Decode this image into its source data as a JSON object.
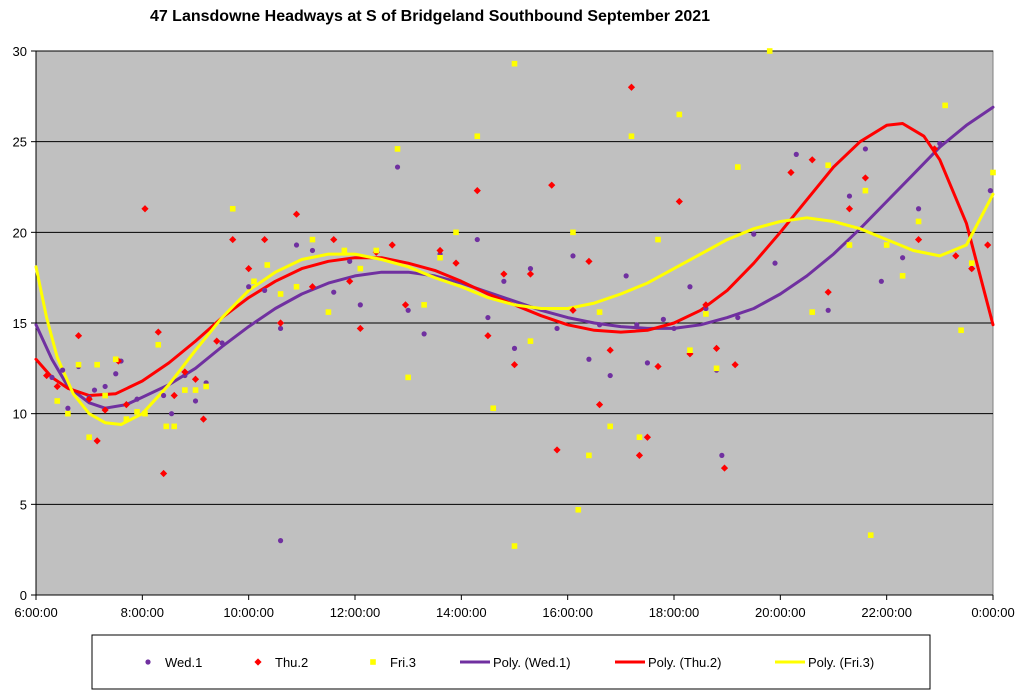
{
  "chart_data": {
    "type": "scatter",
    "title": "47 Lansdowne Headways at S of Bridgeland Southbound September 2021",
    "xlabel": "",
    "ylabel": "",
    "x_unit": "hours",
    "xlim": [
      6,
      24
    ],
    "ylim": [
      0,
      30
    ],
    "x_ticks": [
      6,
      8,
      10,
      12,
      14,
      16,
      18,
      20,
      22,
      24
    ],
    "x_tick_labels": [
      "6:00:00",
      "8:00:00",
      "10:00:00",
      "12:00:00",
      "14:00:00",
      "16:00:00",
      "18:00:00",
      "20:00:00",
      "22:00:00",
      "0:00:00"
    ],
    "y_ticks": [
      0,
      5,
      10,
      15,
      20,
      25,
      30
    ],
    "y_tick_labels": [
      "0",
      "5",
      "10",
      "15",
      "20",
      "25",
      "30"
    ],
    "grid": "horizontal",
    "plot_background": "#c0c0c0",
    "legend_position": "bottom",
    "series": [
      {
        "name": "Wed.1",
        "marker": "circle",
        "color": "#7030a0",
        "points": [
          [
            6.3,
            12.0
          ],
          [
            6.5,
            12.4
          ],
          [
            6.6,
            10.3
          ],
          [
            6.8,
            12.6
          ],
          [
            7.0,
            10.9
          ],
          [
            7.1,
            11.3
          ],
          [
            7.3,
            11.5
          ],
          [
            7.5,
            12.2
          ],
          [
            7.6,
            12.9
          ],
          [
            7.9,
            10.8
          ],
          [
            8.4,
            11.0
          ],
          [
            8.55,
            10.0
          ],
          [
            8.8,
            12.1
          ],
          [
            9.0,
            10.7
          ],
          [
            9.2,
            11.7
          ],
          [
            9.5,
            13.9
          ],
          [
            10.0,
            17.0
          ],
          [
            10.3,
            16.8
          ],
          [
            10.6,
            14.7
          ],
          [
            10.6,
            3.0
          ],
          [
            10.9,
            19.3
          ],
          [
            11.2,
            19.0
          ],
          [
            11.6,
            16.7
          ],
          [
            11.9,
            18.4
          ],
          [
            12.1,
            16.0
          ],
          [
            12.4,
            19.0
          ],
          [
            12.8,
            23.6
          ],
          [
            13.0,
            15.7
          ],
          [
            13.3,
            14.4
          ],
          [
            13.6,
            18.8
          ],
          [
            14.3,
            19.6
          ],
          [
            14.5,
            15.3
          ],
          [
            14.8,
            17.3
          ],
          [
            15.0,
            13.6
          ],
          [
            15.3,
            18.0
          ],
          [
            15.8,
            14.7
          ],
          [
            16.1,
            18.7
          ],
          [
            16.4,
            13.0
          ],
          [
            16.6,
            14.9
          ],
          [
            16.8,
            12.1
          ],
          [
            17.1,
            17.6
          ],
          [
            17.3,
            14.9
          ],
          [
            17.5,
            12.8
          ],
          [
            17.8,
            15.2
          ],
          [
            18.0,
            14.7
          ],
          [
            18.3,
            17.0
          ],
          [
            18.6,
            15.8
          ],
          [
            18.8,
            12.4
          ],
          [
            18.9,
            7.7
          ],
          [
            19.2,
            15.3
          ],
          [
            19.5,
            19.9
          ],
          [
            19.9,
            18.3
          ],
          [
            20.3,
            24.3
          ],
          [
            20.9,
            15.7
          ],
          [
            21.3,
            22.0
          ],
          [
            21.6,
            24.6
          ],
          [
            21.9,
            17.3
          ],
          [
            22.3,
            18.6
          ],
          [
            22.6,
            21.3
          ],
          [
            23.0,
            24.9
          ],
          [
            23.6,
            18.0
          ],
          [
            23.95,
            22.3
          ]
        ]
      },
      {
        "name": "Thu.2",
        "marker": "diamond",
        "color": "#ff0000",
        "points": [
          [
            6.2,
            12.1
          ],
          [
            6.4,
            11.5
          ],
          [
            6.8,
            14.3
          ],
          [
            7.0,
            10.8
          ],
          [
            7.15,
            8.5
          ],
          [
            7.3,
            10.2
          ],
          [
            7.55,
            12.9
          ],
          [
            7.7,
            10.5
          ],
          [
            8.05,
            21.3
          ],
          [
            8.3,
            14.5
          ],
          [
            8.4,
            6.7
          ],
          [
            8.6,
            11.0
          ],
          [
            8.8,
            12.3
          ],
          [
            9.0,
            11.9
          ],
          [
            9.15,
            9.7
          ],
          [
            9.4,
            14.0
          ],
          [
            9.7,
            19.6
          ],
          [
            10.0,
            18.0
          ],
          [
            10.3,
            19.6
          ],
          [
            10.6,
            15.0
          ],
          [
            10.9,
            21.0
          ],
          [
            11.2,
            17.0
          ],
          [
            11.6,
            19.6
          ],
          [
            11.9,
            17.3
          ],
          [
            12.1,
            14.7
          ],
          [
            12.4,
            18.9
          ],
          [
            12.7,
            19.3
          ],
          [
            12.95,
            16.0
          ],
          [
            13.6,
            19.0
          ],
          [
            13.9,
            18.3
          ],
          [
            14.3,
            22.3
          ],
          [
            14.5,
            14.3
          ],
          [
            14.8,
            17.7
          ],
          [
            15.0,
            12.7
          ],
          [
            15.3,
            17.7
          ],
          [
            15.7,
            22.6
          ],
          [
            15.8,
            8.0
          ],
          [
            16.1,
            15.7
          ],
          [
            16.4,
            18.4
          ],
          [
            16.6,
            10.5
          ],
          [
            16.8,
            13.5
          ],
          [
            17.2,
            28.0
          ],
          [
            17.35,
            7.7
          ],
          [
            17.5,
            8.7
          ],
          [
            17.7,
            12.6
          ],
          [
            18.1,
            21.7
          ],
          [
            18.3,
            13.3
          ],
          [
            18.6,
            16.0
          ],
          [
            18.8,
            13.6
          ],
          [
            18.95,
            7.0
          ],
          [
            19.15,
            12.7
          ],
          [
            20.2,
            23.3
          ],
          [
            20.6,
            24.0
          ],
          [
            20.9,
            16.7
          ],
          [
            21.3,
            21.3
          ],
          [
            21.6,
            23.0
          ],
          [
            22.6,
            19.6
          ],
          [
            22.9,
            24.6
          ],
          [
            23.3,
            18.7
          ],
          [
            23.6,
            18.0
          ],
          [
            23.9,
            19.3
          ]
        ]
      },
      {
        "name": "Fri.3",
        "marker": "square",
        "color": "#ffff00",
        "points": [
          [
            6.4,
            10.7
          ],
          [
            6.6,
            10.0
          ],
          [
            6.8,
            12.7
          ],
          [
            7.0,
            8.7
          ],
          [
            7.15,
            12.7
          ],
          [
            7.3,
            11.0
          ],
          [
            7.5,
            13.0
          ],
          [
            7.7,
            9.7
          ],
          [
            7.9,
            10.1
          ],
          [
            8.05,
            10.0
          ],
          [
            8.3,
            13.8
          ],
          [
            8.45,
            9.3
          ],
          [
            8.6,
            9.3
          ],
          [
            8.8,
            11.3
          ],
          [
            9.0,
            11.3
          ],
          [
            9.2,
            11.5
          ],
          [
            9.7,
            21.3
          ],
          [
            10.1,
            17.3
          ],
          [
            10.35,
            18.2
          ],
          [
            10.6,
            16.6
          ],
          [
            10.9,
            17.0
          ],
          [
            11.2,
            19.6
          ],
          [
            11.5,
            15.6
          ],
          [
            11.8,
            19.0
          ],
          [
            12.1,
            18.0
          ],
          [
            12.4,
            19.0
          ],
          [
            12.8,
            24.6
          ],
          [
            13.0,
            12.0
          ],
          [
            13.3,
            16.0
          ],
          [
            13.6,
            18.6
          ],
          [
            13.9,
            20.0
          ],
          [
            14.3,
            25.3
          ],
          [
            14.6,
            10.3
          ],
          [
            15.0,
            29.3
          ],
          [
            15.0,
            2.7
          ],
          [
            15.3,
            14.0
          ],
          [
            16.1,
            20.0
          ],
          [
            16.2,
            4.7
          ],
          [
            16.4,
            7.7
          ],
          [
            16.6,
            15.6
          ],
          [
            16.8,
            9.3
          ],
          [
            17.2,
            25.3
          ],
          [
            17.35,
            8.7
          ],
          [
            17.7,
            19.6
          ],
          [
            18.1,
            26.5
          ],
          [
            18.3,
            13.5
          ],
          [
            18.6,
            15.5
          ],
          [
            18.8,
            12.5
          ],
          [
            19.2,
            23.6
          ],
          [
            19.8,
            30.0
          ],
          [
            20.6,
            15.6
          ],
          [
            20.9,
            23.7
          ],
          [
            21.3,
            19.3
          ],
          [
            21.6,
            22.3
          ],
          [
            21.7,
            3.3
          ],
          [
            22.0,
            19.3
          ],
          [
            22.3,
            17.6
          ],
          [
            22.6,
            20.6
          ],
          [
            23.1,
            27.0
          ],
          [
            23.4,
            14.6
          ],
          [
            23.6,
            18.3
          ],
          [
            24.0,
            23.3
          ]
        ]
      }
    ],
    "trendlines": [
      {
        "name": "Poly. (Wed.1)",
        "color": "#7030a0",
        "points": [
          [
            6.0,
            14.9
          ],
          [
            6.3,
            13.0
          ],
          [
            6.6,
            11.5
          ],
          [
            7.0,
            10.6
          ],
          [
            7.3,
            10.3
          ],
          [
            7.7,
            10.5
          ],
          [
            8.0,
            10.9
          ],
          [
            8.5,
            11.6
          ],
          [
            9.0,
            12.5
          ],
          [
            9.5,
            13.7
          ],
          [
            10.0,
            14.8
          ],
          [
            10.5,
            15.8
          ],
          [
            11.0,
            16.6
          ],
          [
            11.5,
            17.2
          ],
          [
            12.0,
            17.6
          ],
          [
            12.5,
            17.8
          ],
          [
            13.0,
            17.8
          ],
          [
            13.5,
            17.6
          ],
          [
            14.0,
            17.2
          ],
          [
            14.5,
            16.7
          ],
          [
            15.0,
            16.2
          ],
          [
            15.5,
            15.7
          ],
          [
            16.0,
            15.3
          ],
          [
            16.5,
            15.0
          ],
          [
            17.0,
            14.8
          ],
          [
            17.5,
            14.7
          ],
          [
            18.0,
            14.7
          ],
          [
            18.5,
            14.9
          ],
          [
            19.0,
            15.3
          ],
          [
            19.5,
            15.8
          ],
          [
            20.0,
            16.6
          ],
          [
            20.5,
            17.6
          ],
          [
            21.0,
            18.8
          ],
          [
            21.5,
            20.2
          ],
          [
            22.0,
            21.7
          ],
          [
            22.5,
            23.2
          ],
          [
            23.0,
            24.7
          ],
          [
            23.5,
            25.9
          ],
          [
            24.0,
            26.9
          ]
        ]
      },
      {
        "name": "Poly. (Thu.2)",
        "color": "#ff0000",
        "points": [
          [
            6.0,
            13.0
          ],
          [
            6.3,
            12.0
          ],
          [
            6.6,
            11.4
          ],
          [
            7.0,
            11.0
          ],
          [
            7.5,
            11.1
          ],
          [
            8.0,
            11.8
          ],
          [
            8.5,
            12.8
          ],
          [
            9.0,
            14.0
          ],
          [
            9.5,
            15.3
          ],
          [
            10.0,
            16.4
          ],
          [
            10.5,
            17.3
          ],
          [
            11.0,
            18.0
          ],
          [
            11.5,
            18.4
          ],
          [
            12.0,
            18.6
          ],
          [
            12.5,
            18.6
          ],
          [
            13.0,
            18.3
          ],
          [
            13.5,
            17.9
          ],
          [
            14.0,
            17.3
          ],
          [
            14.5,
            16.6
          ],
          [
            15.0,
            16.0
          ],
          [
            15.5,
            15.4
          ],
          [
            16.0,
            14.9
          ],
          [
            16.5,
            14.6
          ],
          [
            17.0,
            14.5
          ],
          [
            17.5,
            14.6
          ],
          [
            18.0,
            15.0
          ],
          [
            18.5,
            15.7
          ],
          [
            19.0,
            16.8
          ],
          [
            19.5,
            18.3
          ],
          [
            20.0,
            20.0
          ],
          [
            20.5,
            21.8
          ],
          [
            21.0,
            23.6
          ],
          [
            21.5,
            25.0
          ],
          [
            22.0,
            25.9
          ],
          [
            22.3,
            26.0
          ],
          [
            22.7,
            25.3
          ],
          [
            23.0,
            24.0
          ],
          [
            23.5,
            20.5
          ],
          [
            24.0,
            14.9
          ]
        ]
      },
      {
        "name": "Poly. (Fri.3)",
        "color": "#ffff00",
        "points": [
          [
            6.0,
            18.1
          ],
          [
            6.2,
            15.3
          ],
          [
            6.4,
            13.1
          ],
          [
            6.7,
            11.1
          ],
          [
            7.0,
            10.0
          ],
          [
            7.3,
            9.5
          ],
          [
            7.6,
            9.4
          ],
          [
            8.0,
            10.0
          ],
          [
            8.5,
            11.6
          ],
          [
            9.0,
            13.5
          ],
          [
            9.5,
            15.3
          ],
          [
            10.0,
            16.8
          ],
          [
            10.5,
            17.8
          ],
          [
            11.0,
            18.5
          ],
          [
            11.5,
            18.8
          ],
          [
            12.0,
            18.8
          ],
          [
            12.5,
            18.5
          ],
          [
            13.0,
            18.1
          ],
          [
            13.5,
            17.5
          ],
          [
            14.0,
            17.0
          ],
          [
            14.5,
            16.4
          ],
          [
            15.0,
            16.0
          ],
          [
            15.5,
            15.8
          ],
          [
            16.0,
            15.8
          ],
          [
            16.5,
            16.1
          ],
          [
            17.0,
            16.6
          ],
          [
            17.5,
            17.2
          ],
          [
            18.0,
            18.0
          ],
          [
            18.5,
            18.8
          ],
          [
            19.0,
            19.6
          ],
          [
            19.5,
            20.2
          ],
          [
            20.0,
            20.6
          ],
          [
            20.5,
            20.8
          ],
          [
            21.0,
            20.6
          ],
          [
            21.5,
            20.2
          ],
          [
            22.0,
            19.6
          ],
          [
            22.5,
            19.0
          ],
          [
            23.0,
            18.7
          ],
          [
            23.5,
            19.3
          ],
          [
            24.0,
            22.1
          ]
        ]
      }
    ]
  }
}
